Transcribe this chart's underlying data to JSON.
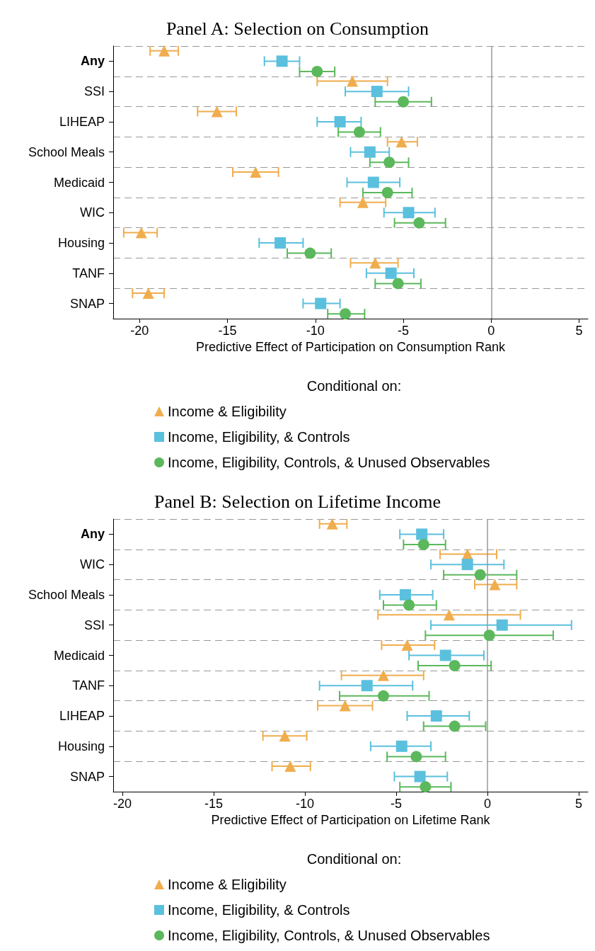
{
  "chart_data": [
    {
      "type": "scatter",
      "orientation": "horizontal",
      "title": "Panel A: Selection on Consumption",
      "xlabel": "Predictive Effect of Participation on Consumption Rank",
      "legend_title": "Conditional on:",
      "legend": "bottom",
      "grid": "y",
      "categories": [
        "Any",
        "SSI",
        "LIHEAP",
        "School Meals",
        "Medicaid",
        "WIC",
        "Housing",
        "TANF",
        "SNAP"
      ],
      "xlim": [
        -21.5,
        5.5
      ],
      "xticks": [
        -20,
        -15,
        -10,
        -5,
        0,
        5
      ],
      "ref_lines": [
        {
          "axis": "x",
          "value": 0,
          "color": "#999999"
        }
      ],
      "series": [
        {
          "name": "Income & Eligibility",
          "color": "#f0ad4e",
          "marker": "triangle",
          "values": [
            -18.6,
            -7.9,
            -15.6,
            -5.1,
            -13.4,
            -7.3,
            -19.9,
            -6.6,
            -19.5
          ],
          "errors": [
            [
              -19.4,
              -17.8
            ],
            [
              -9.9,
              -5.9
            ],
            [
              -16.7,
              -14.5
            ],
            [
              -5.9,
              -4.2
            ],
            [
              -14.7,
              -12.1
            ],
            [
              -8.6,
              -6.0
            ],
            [
              -20.9,
              -19.0
            ],
            [
              -8.0,
              -5.3
            ],
            [
              -20.4,
              -18.6
            ]
          ]
        },
        {
          "name": "Income, Eligibility, & Controls",
          "color": "#5bc0de",
          "marker": "square",
          "values": [
            -11.9,
            -6.5,
            -8.6,
            -6.9,
            -6.7,
            -4.7,
            -12.0,
            -5.7,
            -9.7
          ],
          "errors": [
            [
              -12.9,
              -10.9
            ],
            [
              -8.3,
              -4.7
            ],
            [
              -9.9,
              -7.4
            ],
            [
              -8.0,
              -5.8
            ],
            [
              -8.2,
              -5.2
            ],
            [
              -6.1,
              -3.2
            ],
            [
              -13.2,
              -10.7
            ],
            [
              -7.1,
              -4.4
            ],
            [
              -10.7,
              -8.6
            ]
          ]
        },
        {
          "name": "Income, Eligibility, Controls, & Unused Observables",
          "color": "#5cb85c",
          "marker": "circle",
          "values": [
            -9.9,
            -5.0,
            -7.5,
            -5.8,
            -5.9,
            -4.1,
            -10.3,
            -5.3,
            -8.3
          ],
          "errors": [
            [
              -10.9,
              -8.9
            ],
            [
              -6.6,
              -3.4
            ],
            [
              -8.7,
              -6.3
            ],
            [
              -6.9,
              -4.7
            ],
            [
              -7.3,
              -4.5
            ],
            [
              -5.5,
              -2.6
            ],
            [
              -11.6,
              -9.1
            ],
            [
              -6.6,
              -4.0
            ],
            [
              -9.3,
              -7.2
            ]
          ]
        }
      ]
    },
    {
      "type": "scatter",
      "orientation": "horizontal",
      "title": "Panel B: Selection on Lifetime Income",
      "xlabel": "Predictive Effect of Participation on Lifetime Rank",
      "legend_title": "Conditional on:",
      "legend": "bottom",
      "grid": "y",
      "categories": [
        "Any",
        "WIC",
        "School Meals",
        "SSI",
        "Medicaid",
        "TANF",
        "LIHEAP",
        "Housing",
        "SNAP"
      ],
      "xlim": [
        -20.5,
        5.5
      ],
      "xticks": [
        -20,
        -15,
        -10,
        -5,
        0,
        5
      ],
      "ref_lines": [
        {
          "axis": "x",
          "value": 0,
          "color": "#999999"
        }
      ],
      "series": [
        {
          "name": "Income & Eligibility",
          "color": "#f0ad4e",
          "marker": "triangle",
          "values": [
            -8.5,
            -1.1,
            0.4,
            -2.1,
            -4.4,
            -5.7,
            -7.8,
            -11.1,
            -10.8
          ],
          "errors": [
            [
              -9.2,
              -7.7
            ],
            [
              -2.6,
              0.5
            ],
            [
              -0.7,
              1.6
            ],
            [
              -6.0,
              1.8
            ],
            [
              -5.8,
              -2.9
            ],
            [
              -8.0,
              -3.5
            ],
            [
              -9.3,
              -6.3
            ],
            [
              -12.3,
              -9.9
            ],
            [
              -11.8,
              -9.7
            ]
          ]
        },
        {
          "name": "Income, Eligibility, & Controls",
          "color": "#5bc0de",
          "marker": "square",
          "values": [
            -3.6,
            -1.1,
            -4.5,
            0.8,
            -2.3,
            -6.6,
            -2.8,
            -4.7,
            -3.7
          ],
          "errors": [
            [
              -4.8,
              -2.4
            ],
            [
              -3.1,
              0.9
            ],
            [
              -5.9,
              -3.0
            ],
            [
              -3.1,
              4.6
            ],
            [
              -4.3,
              -0.2
            ],
            [
              -9.2,
              -4.1
            ],
            [
              -4.4,
              -1.0
            ],
            [
              -6.4,
              -3.1
            ],
            [
              -5.1,
              -2.2
            ]
          ]
        },
        {
          "name": "Income, Eligibility, Controls, & Unused Observables",
          "color": "#5cb85c",
          "marker": "circle",
          "values": [
            -3.5,
            -0.4,
            -4.3,
            0.1,
            -1.8,
            -5.7,
            -1.8,
            -3.9,
            -3.4
          ],
          "errors": [
            [
              -4.6,
              -2.3
            ],
            [
              -2.4,
              1.6
            ],
            [
              -5.7,
              -2.8
            ],
            [
              -3.4,
              3.6
            ],
            [
              -3.8,
              0.2
            ],
            [
              -8.1,
              -3.2
            ],
            [
              -3.5,
              -0.1
            ],
            [
              -5.5,
              -2.3
            ],
            [
              -4.8,
              -2.0
            ]
          ]
        }
      ]
    }
  ]
}
